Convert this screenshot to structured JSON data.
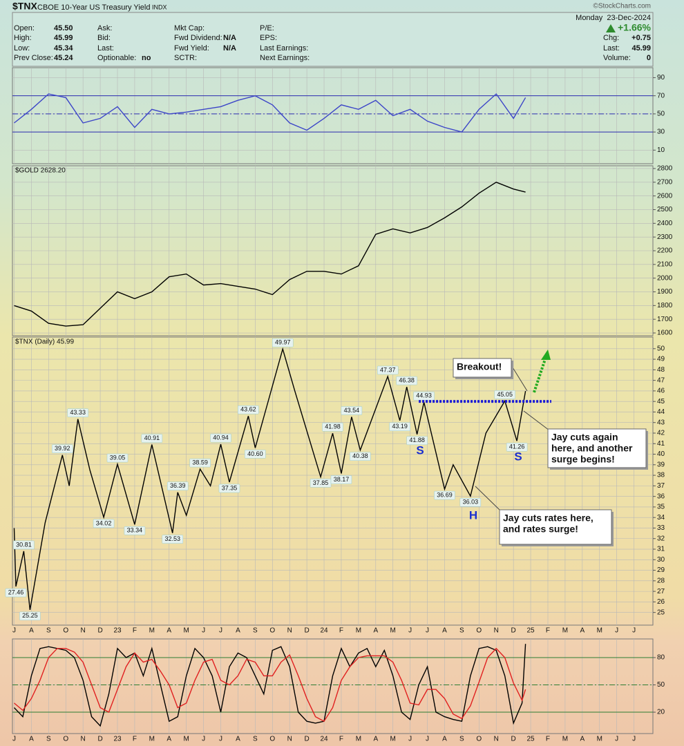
{
  "header": {
    "symbol": "$TNX",
    "name": "CBOE 10-Year US Treasury Yield",
    "exchange": "INDX",
    "copyright": "©StockCharts.com",
    "date": "Monday  23-Dec-2024",
    "change_pct": "+1.66%",
    "columns": [
      [
        {
          "label": "Open:",
          "value": "45.50"
        },
        {
          "label": "High:",
          "value": "45.99"
        },
        {
          "label": "Low:",
          "value": "45.34"
        },
        {
          "label": "Prev Close:",
          "value": "45.24"
        }
      ],
      [
        {
          "label": "Ask:"
        },
        {
          "label": "Bid:"
        },
        {
          "label": "Last:"
        },
        {
          "label": "Optionable:",
          "value": "no"
        }
      ],
      [
        {
          "label": "Mkt Cap:"
        },
        {
          "label": "Fwd Dividend:",
          "value": "N/A"
        },
        {
          "label": "Fwd Yield:",
          "value": "N/A"
        },
        {
          "label": "SCTR:"
        }
      ],
      [
        {
          "label": "P/E:"
        },
        {
          "label": "EPS:"
        },
        {
          "label": "Last Earnings:"
        },
        {
          "label": "Next Earnings:"
        }
      ]
    ],
    "right_fields": [
      {
        "label": "Chg:",
        "value": "+0.75"
      },
      {
        "label": "Last:",
        "value": "45.99"
      },
      {
        "label": "Volume:",
        "value": "0"
      }
    ]
  },
  "chart_data": [
    {
      "type": "line",
      "xlim": [
        -0.1,
        37.1
      ],
      "ylim": [
        -5,
        101
      ],
      "yticks": [
        10,
        30,
        50,
        70,
        90
      ],
      "levels": [
        30,
        70
      ],
      "midline": 50,
      "level_color": "#2b2bb0",
      "grid": true,
      "series": [
        {
          "color": "#3c45c8",
          "x": [
            0,
            1,
            2,
            3,
            4,
            5,
            6,
            7,
            8,
            9,
            10,
            11,
            12,
            13,
            14,
            15,
            16,
            17,
            18,
            19,
            20,
            21,
            22,
            23,
            24,
            25,
            26,
            27,
            28,
            29,
            29.7
          ],
          "values": [
            40,
            55,
            72,
            68,
            40,
            45,
            58,
            35,
            55,
            50,
            52,
            55,
            58,
            65,
            70,
            60,
            40,
            32,
            45,
            60,
            55,
            65,
            48,
            55,
            42,
            35,
            30,
            55,
            72,
            45,
            68
          ]
        }
      ]
    },
    {
      "type": "line",
      "label": "$GOLD 2628.20",
      "xlim": [
        -0.1,
        37.1
      ],
      "ylim": [
        1580,
        2820
      ],
      "yticks": [
        1600,
        1700,
        1800,
        1900,
        2000,
        2100,
        2200,
        2300,
        2400,
        2500,
        2600,
        2700,
        2800
      ],
      "grid": true,
      "series": [
        {
          "color": "#000000",
          "x": [
            0,
            1,
            2,
            3,
            4,
            5,
            6,
            7,
            8,
            9,
            10,
            11,
            12,
            13,
            14,
            15,
            16,
            17,
            18,
            19,
            20,
            21,
            22,
            23,
            24,
            25,
            26,
            27,
            28,
            29,
            29.7
          ],
          "values": [
            1800,
            1760,
            1670,
            1650,
            1660,
            1780,
            1900,
            1850,
            1900,
            2010,
            2030,
            1950,
            1960,
            1940,
            1920,
            1880,
            1990,
            2050,
            2050,
            2030,
            2090,
            2320,
            2360,
            2330,
            2370,
            2440,
            2520,
            2620,
            2700,
            2650,
            2628.2
          ]
        }
      ]
    },
    {
      "type": "line",
      "label": "$TNX (Daily) 45.99",
      "xlim": [
        -0.1,
        37.1
      ],
      "xticks": [
        {
          "value": 0,
          "label": "J"
        },
        {
          "value": 1,
          "label": "A"
        },
        {
          "value": 2,
          "label": "S"
        },
        {
          "value": 3,
          "label": "O"
        },
        {
          "value": 4,
          "label": "N"
        },
        {
          "value": 5,
          "label": "D"
        },
        {
          "value": 6,
          "label": "23"
        },
        {
          "value": 7,
          "label": "F"
        },
        {
          "value": 8,
          "label": "M"
        },
        {
          "value": 9,
          "label": "A"
        },
        {
          "value": 10,
          "label": "M"
        },
        {
          "value": 11,
          "label": "J"
        },
        {
          "value": 12,
          "label": "J"
        },
        {
          "value": 13,
          "label": "A"
        },
        {
          "value": 14,
          "label": "S"
        },
        {
          "value": 15,
          "label": "O"
        },
        {
          "value": 16,
          "label": "N"
        },
        {
          "value": 17,
          "label": "D"
        },
        {
          "value": 18,
          "label": "24"
        },
        {
          "value": 19,
          "label": "F"
        },
        {
          "value": 20,
          "label": "M"
        },
        {
          "value": 21,
          "label": "A"
        },
        {
          "value": 22,
          "label": "M"
        },
        {
          "value": 23,
          "label": "J"
        },
        {
          "value": 24,
          "label": "J"
        },
        {
          "value": 25,
          "label": "A"
        },
        {
          "value": 26,
          "label": "S"
        },
        {
          "value": 27,
          "label": "O"
        },
        {
          "value": 28,
          "label": "N"
        },
        {
          "value": 29,
          "label": "D"
        },
        {
          "value": 30,
          "label": "25"
        },
        {
          "value": 31,
          "label": "F"
        },
        {
          "value": 32,
          "label": "M"
        },
        {
          "value": 33,
          "label": "A"
        },
        {
          "value": 34,
          "label": "M"
        },
        {
          "value": 35,
          "label": "J"
        },
        {
          "value": 36,
          "label": "J"
        }
      ],
      "ylim": [
        23.8,
        51.1
      ],
      "yticks": [
        25,
        26,
        27,
        28,
        29,
        30,
        31,
        32,
        33,
        34,
        35,
        36,
        37,
        38,
        39,
        40,
        41,
        42,
        43,
        44,
        45,
        46,
        47,
        48,
        49,
        50
      ],
      "grid": true,
      "series": [
        {
          "color": "#000000",
          "x": [
            0,
            0.1,
            0.56,
            0.92,
            1.8,
            2.8,
            3.2,
            3.7,
            4.4,
            5.2,
            6.0,
            7.0,
            8.0,
            9.2,
            9.5,
            10.0,
            10.8,
            11.4,
            12.0,
            12.5,
            13.6,
            14.0,
            15.6,
            16.3,
            17.8,
            18.5,
            19.0,
            19.6,
            20.1,
            21.7,
            22.4,
            22.8,
            23.4,
            23.8,
            25.0,
            25.5,
            26.5,
            27.4,
            28.5,
            29.2,
            29.7
          ],
          "values": [
            33.0,
            27.46,
            30.81,
            25.25,
            33.5,
            39.92,
            37.0,
            43.33,
            38.5,
            34.02,
            39.05,
            33.34,
            40.91,
            32.53,
            36.39,
            34.2,
            38.59,
            37.0,
            40.94,
            37.35,
            43.62,
            40.6,
            49.97,
            46.0,
            37.85,
            41.98,
            38.17,
            43.54,
            40.38,
            47.37,
            43.19,
            46.38,
            41.88,
            44.93,
            36.69,
            39.0,
            36.03,
            42.0,
            45.05,
            41.26,
            45.99
          ],
          "value_labels": [
            null,
            "27.46",
            "30.81",
            "25.25",
            null,
            "39.92",
            null,
            "43.33",
            null,
            "34.02",
            "39.05",
            "33.34",
            "40.91",
            "32.53",
            "36.39",
            null,
            "38.59",
            null,
            "40.94",
            "37.35",
            "43.62",
            "40.60",
            "49.97",
            null,
            "37.85",
            "41.98",
            "38.17",
            "43.54",
            "40.38",
            "47.37",
            "43.19",
            "46.38",
            "41.88",
            "44.93",
            "36.69",
            null,
            "36.03",
            null,
            "45.05",
            "41.26",
            null
          ]
        }
      ],
      "breakout_line": {
        "y": 45,
        "x": [
          23.5,
          31.2
        ],
        "color": "#1a1ad6"
      },
      "pattern_labels": [
        "S",
        "H",
        "S"
      ],
      "annotations": [
        {
          "lines": [
            "Breakout!"
          ]
        },
        {
          "lines": [
            "Jay cuts again",
            "here, and another",
            "surge begins!"
          ]
        },
        {
          "lines": [
            "Jay cuts rates here,",
            "and rates surge!"
          ]
        }
      ]
    },
    {
      "type": "line",
      "xlim": [
        -0.1,
        37.1
      ],
      "xticks": [
        {
          "value": 0,
          "label": "J"
        },
        {
          "value": 1,
          "label": "A"
        },
        {
          "value": 2,
          "label": "S"
        },
        {
          "value": 3,
          "label": "O"
        },
        {
          "value": 4,
          "label": "N"
        },
        {
          "value": 5,
          "label": "D"
        },
        {
          "value": 6,
          "label": "23"
        },
        {
          "value": 7,
          "label": "F"
        },
        {
          "value": 8,
          "label": "M"
        },
        {
          "value": 9,
          "label": "A"
        },
        {
          "value": 10,
          "label": "M"
        },
        {
          "value": 11,
          "label": "J"
        },
        {
          "value": 12,
          "label": "J"
        },
        {
          "value": 13,
          "label": "A"
        },
        {
          "value": 14,
          "label": "S"
        },
        {
          "value": 15,
          "label": "O"
        },
        {
          "value": 16,
          "label": "N"
        },
        {
          "value": 17,
          "label": "D"
        },
        {
          "value": 18,
          "label": "24"
        },
        {
          "value": 19,
          "label": "F"
        },
        {
          "value": 20,
          "label": "M"
        },
        {
          "value": 21,
          "label": "A"
        },
        {
          "value": 22,
          "label": "M"
        },
        {
          "value": 23,
          "label": "J"
        },
        {
          "value": 24,
          "label": "J"
        },
        {
          "value": 25,
          "label": "A"
        },
        {
          "value": 26,
          "label": "S"
        },
        {
          "value": 27,
          "label": "O"
        },
        {
          "value": 28,
          "label": "N"
        },
        {
          "value": 29,
          "label": "D"
        },
        {
          "value": 30,
          "label": "25"
        },
        {
          "value": 31,
          "label": "F"
        },
        {
          "value": 32,
          "label": "M"
        },
        {
          "value": 33,
          "label": "A"
        },
        {
          "value": 34,
          "label": "M"
        },
        {
          "value": 35,
          "label": "J"
        },
        {
          "value": 36,
          "label": "J"
        }
      ],
      "ylim": [
        -3.5,
        100.5
      ],
      "yticks": [
        20,
        50,
        80
      ],
      "levels": [
        20,
        80
      ],
      "midline": 50,
      "level_color": "#2e7d32",
      "grid": true,
      "series": [
        {
          "color": "#000000",
          "x": [
            0,
            0.5,
            1,
            1.5,
            2,
            2.5,
            3,
            3.5,
            4,
            4.5,
            5,
            5.5,
            6,
            6.5,
            7,
            7.5,
            8,
            8.5,
            9,
            9.5,
            10,
            10.5,
            11,
            11.5,
            12,
            12.5,
            13,
            13.5,
            14,
            14.5,
            15,
            15.5,
            16,
            16.5,
            17,
            17.5,
            18,
            18.5,
            19,
            19.5,
            20,
            20.5,
            21,
            21.5,
            22,
            22.5,
            23,
            23.5,
            24,
            24.5,
            25,
            25.5,
            26,
            26.5,
            27,
            27.5,
            28,
            28.5,
            29,
            29.5,
            29.7
          ],
          "values": [
            25,
            15,
            60,
            90,
            92,
            90,
            88,
            80,
            55,
            15,
            5,
            40,
            90,
            80,
            85,
            60,
            90,
            50,
            10,
            15,
            60,
            90,
            80,
            60,
            20,
            70,
            85,
            80,
            60,
            40,
            88,
            92,
            70,
            20,
            10,
            8,
            10,
            60,
            90,
            70,
            85,
            90,
            70,
            88,
            60,
            20,
            12,
            50,
            70,
            20,
            15,
            12,
            10,
            60,
            90,
            92,
            88,
            60,
            8,
            30,
            95
          ]
        },
        {
          "color": "#e02020",
          "x": [
            0,
            0.5,
            1,
            1.5,
            2,
            2.5,
            3,
            3.5,
            4,
            4.5,
            5,
            5.5,
            6,
            6.5,
            7,
            7.5,
            8,
            8.5,
            9,
            9.5,
            10,
            10.5,
            11,
            11.5,
            12,
            12.5,
            13,
            13.5,
            14,
            14.5,
            15,
            15.5,
            16,
            16.5,
            17,
            17.5,
            18,
            18.5,
            19,
            19.5,
            20,
            20.5,
            21,
            21.5,
            22,
            22.5,
            23,
            23.5,
            24,
            24.5,
            25,
            25.5,
            26,
            26.5,
            27,
            27.5,
            28,
            28.5,
            29,
            29.5,
            29.7
          ],
          "values": [
            30,
            22,
            35,
            55,
            80,
            90,
            90,
            86,
            75,
            50,
            25,
            20,
            45,
            70,
            85,
            75,
            78,
            65,
            50,
            25,
            30,
            55,
            75,
            78,
            55,
            50,
            60,
            78,
            75,
            60,
            60,
            75,
            83,
            60,
            35,
            15,
            10,
            25,
            55,
            70,
            80,
            82,
            82,
            82,
            75,
            55,
            30,
            28,
            45,
            45,
            35,
            18,
            13,
            27,
            53,
            80,
            90,
            80,
            52,
            33,
            45
          ]
        }
      ]
    }
  ]
}
